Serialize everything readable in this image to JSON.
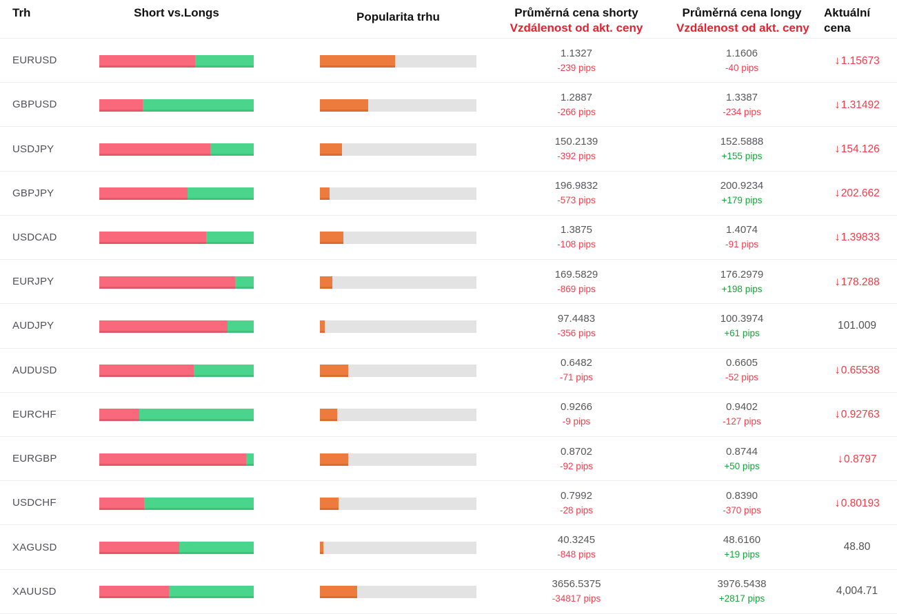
{
  "header": {
    "market": "Trh",
    "short_vs_longs": "Short vs.Longs",
    "popularity": "Popularita trhu",
    "avg_short_line1": "Průměrná cena shorty",
    "avg_short_line2": "Vzdálenost od akt. ceny",
    "avg_long_line1": "Průměrná cena longy",
    "avg_long_line2": "Vzdálenost od akt. ceny",
    "current_line1": "Aktuální",
    "current_line2": "cena"
  },
  "colors": {
    "short_bar": "#f9697b",
    "long_bar": "#4bd58c",
    "popularity_bar": "#ee7b3e",
    "popularity_track": "#e3e3e4",
    "negative_text": "#f2414e",
    "positive_text": "#16a538",
    "current_down_text": "#f43b47",
    "header_accent": "#e52330"
  },
  "rows": [
    {
      "market": "EURUSD",
      "shorts_pct": 62,
      "longs_pct": 38,
      "popularity_pct": 48,
      "avg_short_price": "1.1327",
      "avg_short_distance": "-239 pips",
      "avg_long_price": "1.1606",
      "avg_long_distance": "-40 pips",
      "current_price": "1.15673",
      "current_direction": "down"
    },
    {
      "market": "GBPUSD",
      "shorts_pct": 28,
      "longs_pct": 72,
      "popularity_pct": 31,
      "avg_short_price": "1.2887",
      "avg_short_distance": "-266 pips",
      "avg_long_price": "1.3387",
      "avg_long_distance": "-234 pips",
      "current_price": "1.31492",
      "current_direction": "down"
    },
    {
      "market": "USDJPY",
      "shorts_pct": 72,
      "longs_pct": 28,
      "popularity_pct": 14,
      "avg_short_price": "150.2139",
      "avg_short_distance": "-392 pips",
      "avg_long_price": "152.5888",
      "avg_long_distance": "+155 pips",
      "current_price": "154.126",
      "current_direction": "down"
    },
    {
      "market": "GBPJPY",
      "shorts_pct": 57,
      "longs_pct": 43,
      "popularity_pct": 6,
      "avg_short_price": "196.9832",
      "avg_short_distance": "-573 pips",
      "avg_long_price": "200.9234",
      "avg_long_distance": "+179 pips",
      "current_price": "202.662",
      "current_direction": "down"
    },
    {
      "market": "USDCAD",
      "shorts_pct": 69,
      "longs_pct": 31,
      "popularity_pct": 15,
      "avg_short_price": "1.3875",
      "avg_short_distance": "-108 pips",
      "avg_long_price": "1.4074",
      "avg_long_distance": "-91 pips",
      "current_price": "1.39833",
      "current_direction": "down"
    },
    {
      "market": "EURJPY",
      "shorts_pct": 88,
      "longs_pct": 12,
      "popularity_pct": 8,
      "avg_short_price": "169.5829",
      "avg_short_distance": "-869 pips",
      "avg_long_price": "176.2979",
      "avg_long_distance": "+198 pips",
      "current_price": "178.288",
      "current_direction": "down"
    },
    {
      "market": "AUDJPY",
      "shorts_pct": 83,
      "longs_pct": 17,
      "popularity_pct": 3,
      "avg_short_price": "97.4483",
      "avg_short_distance": "-356 pips",
      "avg_long_price": "100.3974",
      "avg_long_distance": "+61 pips",
      "current_price": "101.009",
      "current_direction": "none"
    },
    {
      "market": "AUDUSD",
      "shorts_pct": 61,
      "longs_pct": 39,
      "popularity_pct": 18,
      "avg_short_price": "0.6482",
      "avg_short_distance": "-71 pips",
      "avg_long_price": "0.6605",
      "avg_long_distance": "-52 pips",
      "current_price": "0.65538",
      "current_direction": "down"
    },
    {
      "market": "EURCHF",
      "shorts_pct": 26,
      "longs_pct": 74,
      "popularity_pct": 11,
      "avg_short_price": "0.9266",
      "avg_short_distance": "-9 pips",
      "avg_long_price": "0.9402",
      "avg_long_distance": "-127 pips",
      "current_price": "0.92763",
      "current_direction": "down"
    },
    {
      "market": "EURGBP",
      "shorts_pct": 95,
      "longs_pct": 5,
      "popularity_pct": 18,
      "avg_short_price": "0.8702",
      "avg_short_distance": "-92 pips",
      "avg_long_price": "0.8744",
      "avg_long_distance": "+50 pips",
      "current_price": "0.8797",
      "current_direction": "down"
    },
    {
      "market": "USDCHF",
      "shorts_pct": 29,
      "longs_pct": 71,
      "popularity_pct": 12,
      "avg_short_price": "0.7992",
      "avg_short_distance": "-28 pips",
      "avg_long_price": "0.8390",
      "avg_long_distance": "-370 pips",
      "current_price": "0.80193",
      "current_direction": "down"
    },
    {
      "market": "XAGUSD",
      "shorts_pct": 52,
      "longs_pct": 48,
      "popularity_pct": 2,
      "avg_short_price": "40.3245",
      "avg_short_distance": "-848 pips",
      "avg_long_price": "48.6160",
      "avg_long_distance": "+19 pips",
      "current_price": "48.80",
      "current_direction": "none"
    },
    {
      "market": "XAUUSD",
      "shorts_pct": 45,
      "longs_pct": 55,
      "popularity_pct": 24,
      "avg_short_price": "3656.5375",
      "avg_short_distance": "-34817 pips",
      "avg_long_price": "3976.5438",
      "avg_long_distance": "+2817 pips",
      "current_price": "4,004.71",
      "current_direction": "none"
    }
  ],
  "icons": {
    "down_arrow": "↓"
  }
}
